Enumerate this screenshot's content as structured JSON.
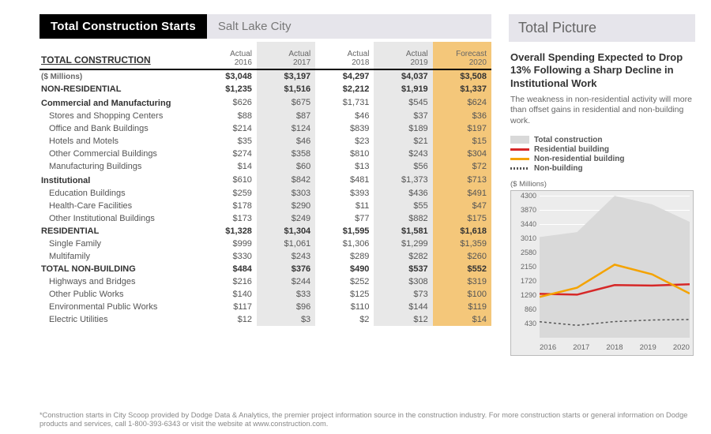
{
  "titlebar": {
    "main": "Total Construction Starts",
    "sub": "Salt Lake City"
  },
  "table": {
    "heading": "TOTAL CONSTRUCTION",
    "unit": "($ Millions)",
    "columns": [
      {
        "top": "Actual",
        "year": "2016"
      },
      {
        "top": "Actual",
        "year": "2017",
        "shade": true
      },
      {
        "top": "Actual",
        "year": "2018"
      },
      {
        "top": "Actual",
        "year": "2019",
        "shade": true
      },
      {
        "top": "Forecast",
        "year": "2020",
        "gold": true
      }
    ],
    "rows": [
      {
        "lbl": "($ Millions)",
        "cls": "unit bold",
        "v": [
          "$3,048",
          "$3,197",
          "$4,297",
          "$4,037",
          "$3,508"
        ]
      },
      {
        "lbl": "NON-RESIDENTIAL",
        "cls": "bold",
        "v": [
          "$1,235",
          "$1,516",
          "$2,212",
          "$1,919",
          "$1,337"
        ]
      },
      {
        "lbl": "Commercial and Manufacturing",
        "cls": "section",
        "v": [
          "$626",
          "$675",
          "$1,731",
          "$545",
          "$624"
        ]
      },
      {
        "lbl": "Stores and Shopping Centers",
        "cls": "sub",
        "v": [
          "$88",
          "$87",
          "$46",
          "$37",
          "$36"
        ]
      },
      {
        "lbl": "Office and Bank Buildings",
        "cls": "sub",
        "v": [
          "$214",
          "$124",
          "$839",
          "$189",
          "$197"
        ]
      },
      {
        "lbl": "Hotels and Motels",
        "cls": "sub",
        "v": [
          "$35",
          "$46",
          "$23",
          "$21",
          "$15"
        ]
      },
      {
        "lbl": "Other Commercial Buildings",
        "cls": "sub",
        "v": [
          "$274",
          "$358",
          "$810",
          "$243",
          "$304"
        ]
      },
      {
        "lbl": "Manufacturing Buildings",
        "cls": "sub",
        "v": [
          "$14",
          "$60",
          "$13",
          "$56",
          "$72"
        ]
      },
      {
        "lbl": "Institutional",
        "cls": "section",
        "v": [
          "$610",
          "$842",
          "$481",
          "$1,373",
          "$713"
        ]
      },
      {
        "lbl": "Education Buildings",
        "cls": "sub",
        "v": [
          "$259",
          "$303",
          "$393",
          "$436",
          "$491"
        ]
      },
      {
        "lbl": "Health-Care Facilities",
        "cls": "sub",
        "v": [
          "$178",
          "$290",
          "$11",
          "$55",
          "$47"
        ]
      },
      {
        "lbl": "Other Institutional Buildings",
        "cls": "sub",
        "v": [
          "$173",
          "$249",
          "$77",
          "$882",
          "$175"
        ]
      },
      {
        "lbl": "RESIDENTIAL",
        "cls": "bold",
        "v": [
          "$1,328",
          "$1,304",
          "$1,595",
          "$1,581",
          "$1,618"
        ]
      },
      {
        "lbl": "Single Family",
        "cls": "sub",
        "v": [
          "$999",
          "$1,061",
          "$1,306",
          "$1,299",
          "$1,359"
        ]
      },
      {
        "lbl": "Multifamily",
        "cls": "sub",
        "v": [
          "$330",
          "$243",
          "$289",
          "$282",
          "$260"
        ]
      },
      {
        "lbl": "TOTAL NON-BUILDING",
        "cls": "bold",
        "v": [
          "$484",
          "$376",
          "$490",
          "$537",
          "$552"
        ]
      },
      {
        "lbl": "Highways and Bridges",
        "cls": "sub",
        "v": [
          "$216",
          "$244",
          "$252",
          "$308",
          "$319"
        ]
      },
      {
        "lbl": "Other Public Works",
        "cls": "sub",
        "v": [
          "$140",
          "$33",
          "$125",
          "$73",
          "$100"
        ]
      },
      {
        "lbl": "Environmental Public Works",
        "cls": "sub",
        "v": [
          "$117",
          "$96",
          "$110",
          "$144",
          "$119"
        ]
      },
      {
        "lbl": "Electric Utilities",
        "cls": "sub",
        "v": [
          "$12",
          "$3",
          "$2",
          "$12",
          "$14"
        ]
      }
    ]
  },
  "right": {
    "heading": "Total Picture",
    "headline": "Overall Spending Expected to Drop 13% Following a Sharp Decline in Institutional Work",
    "desc": "The weakness in non-residential activity will more than offset gains in residential and non-building work.",
    "legend": [
      {
        "key": "grey",
        "label": "Total construction"
      },
      {
        "key": "red",
        "label": "Residential building"
      },
      {
        "key": "yel",
        "label": "Non-residential building"
      },
      {
        "key": "hatch",
        "label": "Non-building"
      }
    ],
    "chart": {
      "unit": "($ Millions)",
      "ymin": 0,
      "ymax": 4300,
      "yticks": [
        430,
        860,
        1290,
        1720,
        2150,
        2580,
        3010,
        3440,
        3870,
        4300
      ],
      "x": [
        "2016",
        "2017",
        "2018",
        "2019",
        "2020"
      ],
      "series": {
        "total": {
          "color": "#d9d9d9",
          "type": "area",
          "values": [
            3048,
            3197,
            4297,
            4037,
            3508
          ]
        },
        "yel": {
          "color": "#f4a300",
          "width": 2.5,
          "values": [
            1235,
            1516,
            2212,
            1919,
            1337
          ]
        },
        "red": {
          "color": "#d62828",
          "width": 2.5,
          "values": [
            1328,
            1304,
            1595,
            1581,
            1618
          ]
        },
        "hatch": {
          "color": "#555555",
          "width": 1.5,
          "dash": "3,3",
          "values": [
            484,
            376,
            490,
            537,
            552
          ]
        }
      }
    }
  },
  "footnote": "*Construction starts in City Scoop provided by Dodge Data & Analytics, the premier project information source in the construction industry. For more construction starts or general information on Dodge products and services, call 1-800-393-6343 or visit the website at www.construction.com."
}
